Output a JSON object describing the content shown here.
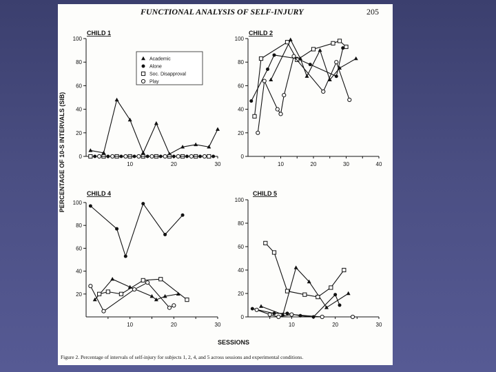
{
  "page": {
    "header_title": "FUNCTIONAL ANALYSIS OF SELF-INJURY",
    "page_number": "205",
    "y_axis_title": "PERCENTAGE OF 10-S INTERVALS (SIB)",
    "x_axis_title": "SESSIONS",
    "caption": "Figure 2.    Percentage of intervals of self-injury for subjects 1, 2, 4, and 5 across sessions and experimental conditions."
  },
  "legend": [
    {
      "label": "Academic",
      "marker": "triangle"
    },
    {
      "label": "Alone",
      "marker": "filled-circle"
    },
    {
      "label": "Soc. Disapproval",
      "marker": "open-square"
    },
    {
      "label": "Play",
      "marker": "open-circle"
    }
  ],
  "chart_data": [
    {
      "type": "line",
      "title": "CHILD 1",
      "xlim": [
        0,
        30
      ],
      "ylim": [
        0,
        100
      ],
      "xticks": [
        10,
        20,
        30
      ],
      "yticks": [
        0,
        20,
        40,
        60,
        80,
        100
      ],
      "series": [
        {
          "name": "Academic",
          "marker": "triangle",
          "points": [
            [
              1,
              5
            ],
            [
              4,
              3
            ],
            [
              7,
              48
            ],
            [
              10,
              31
            ],
            [
              13,
              3
            ],
            [
              16,
              28
            ],
            [
              19,
              2
            ],
            [
              22,
              8
            ],
            [
              25,
              10
            ],
            [
              28,
              8
            ],
            [
              30,
              23
            ]
          ]
        },
        {
          "name": "Alone",
          "marker": "filled-circle",
          "points": [
            [
              2,
              0
            ],
            [
              5,
              0
            ],
            [
              8,
              0
            ],
            [
              11,
              0
            ],
            [
              14,
              0
            ],
            [
              17,
              0
            ],
            [
              20,
              0
            ],
            [
              23,
              0
            ],
            [
              26,
              0
            ],
            [
              29,
              0
            ]
          ]
        },
        {
          "name": "Soc. Disapproval",
          "marker": "open-square",
          "points": [
            [
              1,
              0
            ],
            [
              4,
              0
            ],
            [
              7,
              0
            ],
            [
              10,
              0
            ],
            [
              13,
              0
            ],
            [
              16,
              0
            ],
            [
              19,
              0
            ],
            [
              22,
              0
            ],
            [
              25,
              0
            ],
            [
              28,
              0
            ]
          ]
        },
        {
          "name": "Play",
          "marker": "open-circle",
          "points": [
            [
              3,
              0
            ],
            [
              6,
              0
            ],
            [
              9,
              0
            ],
            [
              12,
              0
            ],
            [
              15,
              0
            ],
            [
              18,
              0
            ],
            [
              21,
              0
            ],
            [
              24,
              0
            ],
            [
              27,
              0
            ]
          ]
        }
      ]
    },
    {
      "type": "line",
      "title": "CHILD 2",
      "xlim": [
        0,
        40
      ],
      "ylim": [
        0,
        100
      ],
      "xticks": [
        10,
        20,
        30,
        40
      ],
      "yticks": [
        0,
        20,
        40,
        60,
        80,
        100
      ],
      "series": [
        {
          "name": "Academic",
          "marker": "triangle",
          "points": [
            [
              7,
              65
            ],
            [
              13,
              99
            ],
            [
              16,
              83
            ],
            [
              18,
              68
            ],
            [
              22,
              90
            ],
            [
              25,
              65
            ],
            [
              28,
              75
            ],
            [
              33,
              83
            ]
          ]
        },
        {
          "name": "Alone",
          "marker": "filled-circle",
          "points": [
            [
              1,
              47
            ],
            [
              6,
              74
            ],
            [
              8,
              86
            ],
            [
              15,
              83
            ],
            [
              19,
              78
            ],
            [
              27,
              68
            ],
            [
              29,
              92
            ]
          ]
        },
        {
          "name": "Soc. Disapproval",
          "marker": "open-square",
          "points": [
            [
              2,
              34
            ],
            [
              4,
              83
            ],
            [
              12,
              97
            ],
            [
              15,
              82
            ],
            [
              20,
              91
            ],
            [
              26,
              96
            ],
            [
              28,
              98
            ],
            [
              30,
              93
            ]
          ]
        },
        {
          "name": "Play",
          "marker": "open-circle",
          "points": [
            [
              3,
              20
            ],
            [
              5,
              64
            ],
            [
              9,
              40
            ],
            [
              10,
              36
            ],
            [
              11,
              52
            ],
            [
              14,
              85
            ],
            [
              23,
              55
            ],
            [
              27,
              80
            ],
            [
              31,
              48
            ]
          ]
        }
      ]
    },
    {
      "type": "line",
      "title": "CHILD 4",
      "xlim": [
        0,
        30
      ],
      "ylim": [
        0,
        100
      ],
      "xticks": [
        10,
        20,
        30
      ],
      "yticks": [
        20,
        40,
        60,
        80,
        100
      ],
      "series": [
        {
          "name": "Academic",
          "marker": "triangle",
          "points": [
            [
              2,
              15
            ],
            [
              6,
              33
            ],
            [
              10,
              26
            ],
            [
              15,
              18
            ],
            [
              16,
              15
            ],
            [
              18,
              18
            ],
            [
              21,
              20
            ]
          ]
        },
        {
          "name": "Alone",
          "marker": "filled-circle",
          "points": [
            [
              1,
              97
            ],
            [
              7,
              77
            ],
            [
              9,
              53
            ],
            [
              13,
              99
            ],
            [
              18,
              72
            ],
            [
              22,
              89
            ]
          ]
        },
        {
          "name": "Soc. Disapproval",
          "marker": "open-square",
          "points": [
            [
              3,
              20
            ],
            [
              5,
              22
            ],
            [
              8,
              20
            ],
            [
              13,
              32
            ],
            [
              17,
              33
            ],
            [
              23,
              15
            ]
          ]
        },
        {
          "name": "Play",
          "marker": "open-circle",
          "points": [
            [
              1,
              27
            ],
            [
              4,
              5
            ],
            [
              11,
              24
            ],
            [
              14,
              30
            ],
            [
              19,
              8
            ],
            [
              20,
              10
            ]
          ]
        }
      ]
    },
    {
      "type": "line",
      "title": "CHILD 5",
      "xlim": [
        0,
        30
      ],
      "ylim": [
        0,
        100
      ],
      "xticks": [
        10,
        20,
        30
      ],
      "yticks": [
        0,
        20,
        40,
        60,
        80,
        100
      ],
      "series": [
        {
          "name": "Academic",
          "marker": "triangle",
          "points": [
            [
              3,
              9
            ],
            [
              8,
              2
            ],
            [
              11,
              42
            ],
            [
              14,
              30
            ],
            [
              18,
              8
            ],
            [
              23,
              20
            ]
          ]
        },
        {
          "name": "Alone",
          "marker": "filled-circle",
          "points": [
            [
              1,
              7
            ],
            [
              6,
              3
            ],
            [
              9,
              3
            ],
            [
              12,
              1
            ],
            [
              15,
              0
            ],
            [
              20,
              19
            ],
            [
              21,
              10
            ]
          ]
        },
        {
          "name": "Soc. Disapproval",
          "marker": "open-square",
          "points": [
            [
              4,
              63
            ],
            [
              6,
              55
            ],
            [
              9,
              22
            ],
            [
              13,
              19
            ],
            [
              16,
              17
            ],
            [
              19,
              25
            ],
            [
              22,
              40
            ]
          ]
        },
        {
          "name": "Play",
          "marker": "open-circle",
          "points": [
            [
              2,
              6
            ],
            [
              5,
              2
            ],
            [
              7,
              0
            ],
            [
              10,
              2
            ],
            [
              17,
              0
            ],
            [
              24,
              0
            ]
          ]
        }
      ]
    }
  ]
}
